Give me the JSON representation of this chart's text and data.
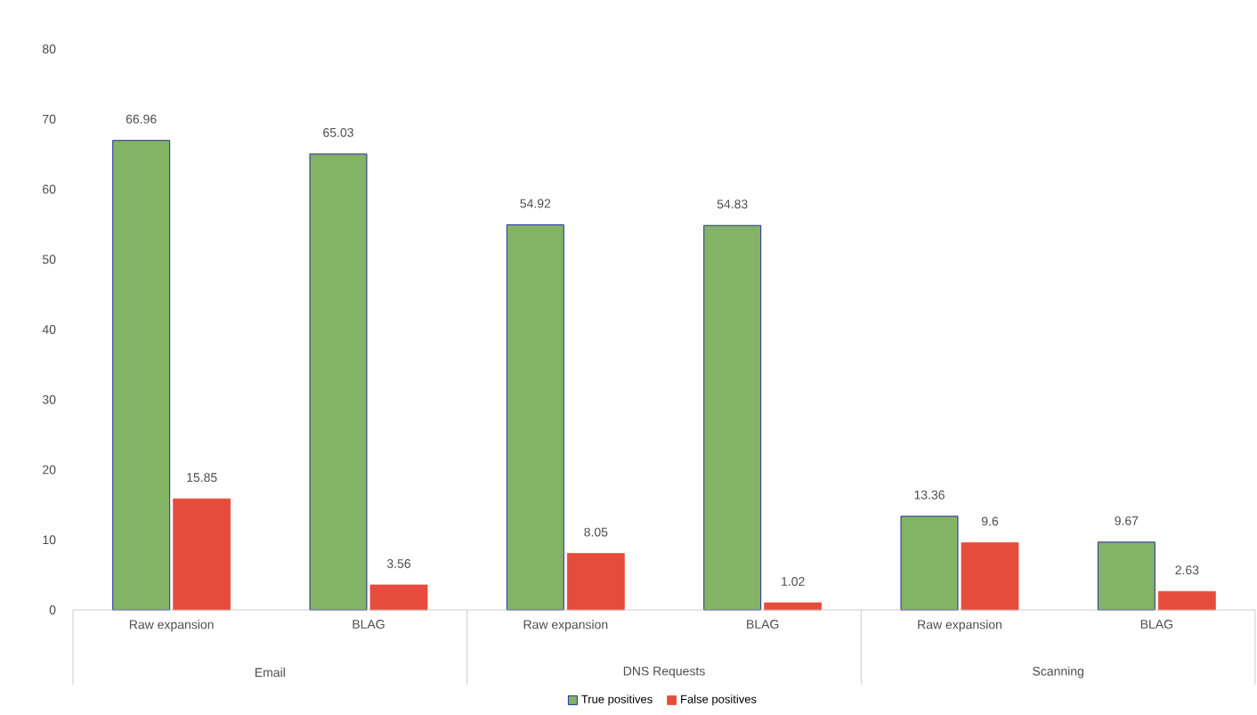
{
  "chart_data": {
    "type": "bar",
    "categories": [
      "Raw expansion",
      "BLAG",
      "Raw expansion",
      "BLAG",
      "Raw expansion",
      "BLAG"
    ],
    "series": [
      {
        "name": "True positives",
        "color": "#83b466",
        "values": [
          66.96,
          65.03,
          54.92,
          54.83,
          13.36,
          9.67
        ]
      },
      {
        "name": "False positives",
        "color": "#e64c3b",
        "values": [
          15.85,
          3.56,
          8.05,
          1.02,
          9.6,
          2.63
        ]
      }
    ],
    "annotations": [
      "Email",
      "DNS Requests",
      "Scanning"
    ],
    "ylim": [
      0,
      80
    ],
    "yticks": [
      0,
      10,
      20,
      30,
      40,
      50,
      60,
      70,
      80
    ],
    "data_labels": true,
    "grid": false,
    "legend": "bottom"
  }
}
